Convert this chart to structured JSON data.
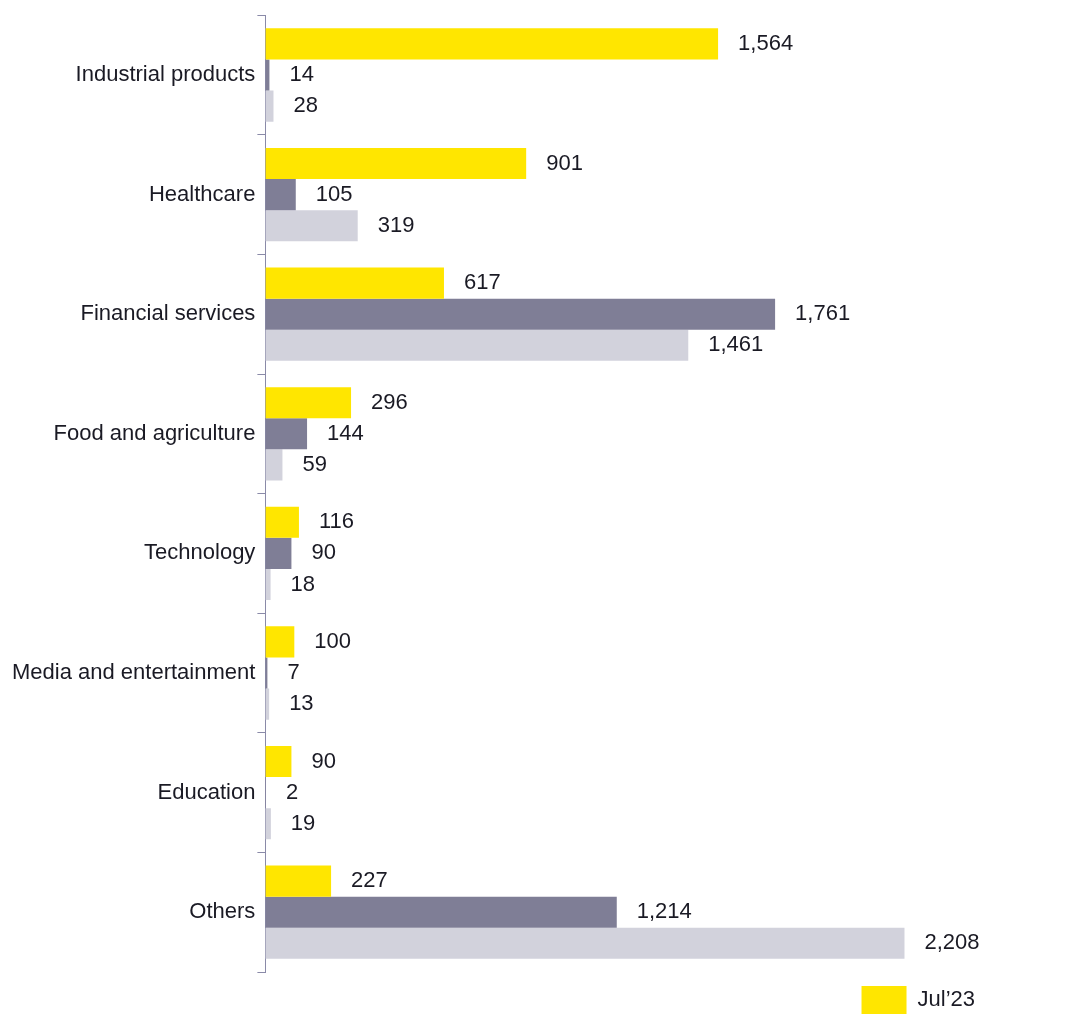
{
  "chart_data": {
    "type": "bar",
    "orientation": "horizontal",
    "categories": [
      "Industrial products",
      "Healthcare",
      "Financial services",
      "Food and agriculture",
      "Technology",
      "Media and entertainment",
      "Education",
      "Others"
    ],
    "series": [
      {
        "name": "Jul’23",
        "color": "#ffe600",
        "values": [
          1564,
          901,
          617,
          296,
          116,
          100,
          90,
          227
        ],
        "value_labels": [
          "1,564",
          "901",
          "617",
          "296",
          "116",
          "100",
          "90",
          "227"
        ]
      },
      {
        "color": "#7f7e96",
        "values": [
          14,
          105,
          1761,
          144,
          90,
          7,
          2,
          1214
        ],
        "value_labels": [
          "14",
          "105",
          "1,761",
          "144",
          "90",
          "7",
          "2",
          "1,214"
        ]
      },
      {
        "color": "#d2d2dc",
        "values": [
          28,
          319,
          1461,
          59,
          18,
          13,
          19,
          2208
        ],
        "value_labels": [
          "28",
          "319",
          "1,461",
          "59",
          "18",
          "13",
          "19",
          "2,208"
        ]
      }
    ],
    "legend": "bottom",
    "tick_labels": "y"
  }
}
